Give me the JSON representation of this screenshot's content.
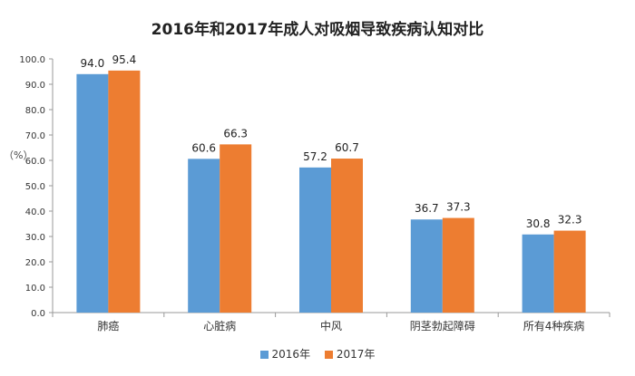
{
  "colors": {
    "series_2016": "#5B9BD5",
    "series_2017": "#ED7D31",
    "axis": "#999999",
    "text": "#333333"
  },
  "chart_data": {
    "type": "bar",
    "title": "2016年和2017年成人对吸烟导致疾病认知对比",
    "ylabel": "（%）",
    "xlabel": "",
    "ylim": [
      0,
      100
    ],
    "yticks": [
      "0.0",
      "10.0",
      "20.0",
      "30.0",
      "40.0",
      "50.0",
      "60.0",
      "70.0",
      "80.0",
      "90.0",
      "100.0"
    ],
    "categories": [
      "肺癌",
      "心脏病",
      "中风",
      "阴茎勃起障碍",
      "所有4种疾病"
    ],
    "series": [
      {
        "name": "2016年",
        "values": [
          94.0,
          60.6,
          57.2,
          36.7,
          30.8
        ],
        "labels": [
          "94.0",
          "60.6",
          "57.2",
          "36.7",
          "30.8"
        ]
      },
      {
        "name": "2017年",
        "values": [
          95.4,
          66.3,
          60.7,
          37.3,
          32.3
        ],
        "labels": [
          "95.4",
          "66.3",
          "60.7",
          "37.3",
          "32.3"
        ]
      }
    ],
    "grid": false,
    "legend_position": "bottom"
  }
}
